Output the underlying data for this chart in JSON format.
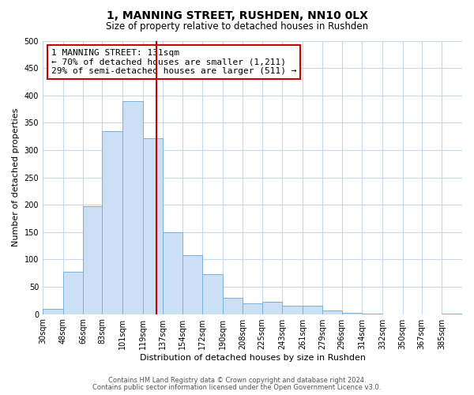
{
  "title": "1, MANNING STREET, RUSHDEN, NN10 0LX",
  "subtitle": "Size of property relative to detached houses in Rushden",
  "xlabel": "Distribution of detached houses by size in Rushden",
  "ylabel": "Number of detached properties",
  "bar_labels": [
    "30sqm",
    "48sqm",
    "66sqm",
    "83sqm",
    "101sqm",
    "119sqm",
    "137sqm",
    "154sqm",
    "172sqm",
    "190sqm",
    "208sqm",
    "225sqm",
    "243sqm",
    "261sqm",
    "279sqm",
    "296sqm",
    "314sqm",
    "332sqm",
    "350sqm",
    "367sqm",
    "385sqm"
  ],
  "bar_values": [
    10,
    78,
    197,
    335,
    390,
    322,
    150,
    108,
    73,
    30,
    20,
    22,
    15,
    15,
    7,
    2,
    1,
    0,
    0,
    0,
    1
  ],
  "bar_color": "#cce0f5",
  "bar_edgecolor": "#7ab0d8",
  "bin_edges": [
    30,
    48,
    66,
    83,
    101,
    119,
    137,
    154,
    172,
    190,
    208,
    225,
    243,
    261,
    279,
    296,
    314,
    332,
    350,
    367,
    385,
    403
  ],
  "ylim": [
    0,
    500
  ],
  "yticks": [
    0,
    50,
    100,
    150,
    200,
    250,
    300,
    350,
    400,
    450,
    500
  ],
  "annotation_title": "1 MANNING STREET: 131sqm",
  "annotation_line1": "← 70% of detached houses are smaller (1,211)",
  "annotation_line2": "29% of semi-detached houses are larger (511) →",
  "vline_x": 131,
  "vline_color": "#cc0000",
  "annotation_box_edgecolor": "#cc0000",
  "footnote1": "Contains HM Land Registry data © Crown copyright and database right 2024.",
  "footnote2": "Contains public sector information licensed under the Open Government Licence v3.0.",
  "background_color": "#ffffff",
  "grid_color": "#c8d8e8",
  "title_fontsize": 10,
  "subtitle_fontsize": 8.5,
  "ylabel_fontsize": 8,
  "xlabel_fontsize": 8,
  "tick_fontsize": 7,
  "annotation_fontsize": 8,
  "footnote_fontsize": 6
}
